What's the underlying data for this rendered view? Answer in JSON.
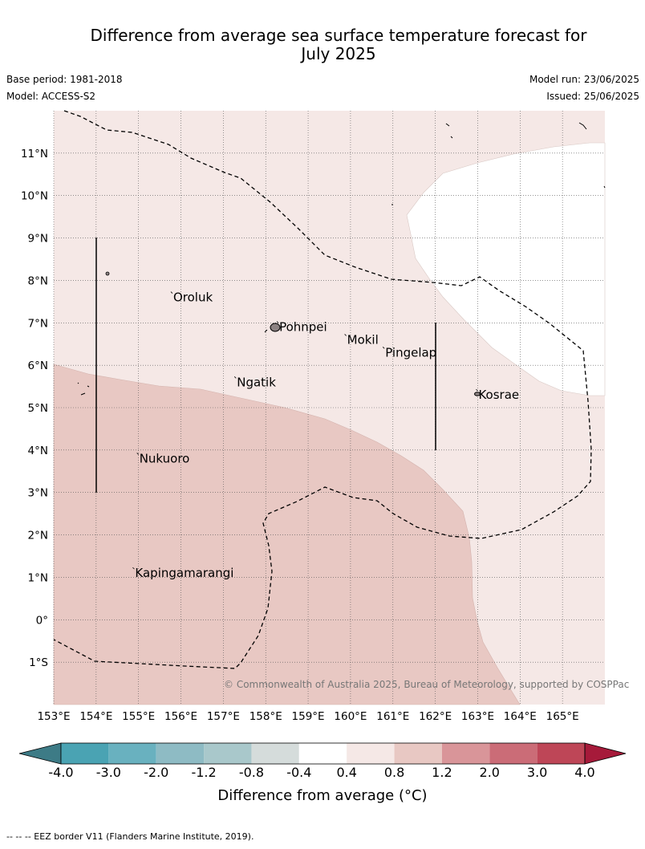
{
  "title_line1": "Difference from average sea surface temperature forecast for",
  "title_line2": "July 2025",
  "base_period": "Base period: 1981-2018",
  "model": "Model: ACCESS-S2",
  "model_run": "Model run: 23/06/2025",
  "issued": "Issued: 25/06/2025",
  "copyright": "© Commonwealth of Australia 2025, Bureau of Meteorology, supported by COSPPac",
  "footnote": "--  --  -- EEZ border V11 (Flanders Marine Institute, 2019).",
  "colors": {
    "anomaly_0.4_0.8": "#f5e8e6",
    "anomaly_0.8_1.2": "#e8c8c3",
    "neutral": "#ffffff",
    "eez_line": "#000000"
  },
  "map": {
    "lon_range": [
      153,
      166
    ],
    "lat_range": [
      -2,
      12
    ],
    "lon_ticks": [
      {
        "value": 153,
        "label": "153°E"
      },
      {
        "value": 154,
        "label": "154°E"
      },
      {
        "value": 155,
        "label": "155°E"
      },
      {
        "value": 156,
        "label": "156°E"
      },
      {
        "value": 157,
        "label": "157°E"
      },
      {
        "value": 158,
        "label": "158°E"
      },
      {
        "value": 159,
        "label": "159°E"
      },
      {
        "value": 160,
        "label": "160°E"
      },
      {
        "value": 161,
        "label": "161°E"
      },
      {
        "value": 162,
        "label": "162°E"
      },
      {
        "value": 163,
        "label": "163°E"
      },
      {
        "value": 164,
        "label": "164°E"
      },
      {
        "value": 165,
        "label": "165°E"
      }
    ],
    "lat_ticks": [
      {
        "value": 11,
        "label": "11°N"
      },
      {
        "value": 10,
        "label": "10°N"
      },
      {
        "value": 9,
        "label": "9°N"
      },
      {
        "value": 8,
        "label": "8°N"
      },
      {
        "value": 7,
        "label": "7°N"
      },
      {
        "value": 6,
        "label": "6°N"
      },
      {
        "value": 5,
        "label": "5°N"
      },
      {
        "value": 4,
        "label": "4°N"
      },
      {
        "value": 3,
        "label": "3°N"
      },
      {
        "value": 2,
        "label": "2°N"
      },
      {
        "value": 1,
        "label": "1°N"
      },
      {
        "value": 0,
        "label": "0°"
      },
      {
        "value": -1,
        "label": "1°S"
      }
    ],
    "places": [
      {
        "name": "Oroluk",
        "lon": 155.8,
        "lat": 7.6
      },
      {
        "name": "Pohnpei",
        "lon": 158.3,
        "lat": 6.9
      },
      {
        "name": "Mokil",
        "lon": 159.9,
        "lat": 6.6
      },
      {
        "name": "Pingelap",
        "lon": 160.8,
        "lat": 6.3
      },
      {
        "name": "Ngatik",
        "lon": 157.3,
        "lat": 5.6
      },
      {
        "name": "Kosrae",
        "lon": 163.0,
        "lat": 5.3
      },
      {
        "name": "Nukuoro",
        "lon": 155.0,
        "lat": 3.8
      },
      {
        "name": "Kapingamarangi",
        "lon": 154.9,
        "lat": 1.1
      }
    ]
  },
  "colorbar": {
    "label": "Difference from average (°C)",
    "ticks": [
      "-4.0",
      "-3.0",
      "-2.0",
      "-1.2",
      "-0.8",
      "-0.4",
      "0.4",
      "0.8",
      "1.2",
      "2.0",
      "3.0",
      "4.0"
    ],
    "colors": [
      "#3d7b86",
      "#4aa3b3",
      "#69b1bf",
      "#8ebbc4",
      "#a9c8cb",
      "#d5dcdb",
      "#ffffff",
      "#f5e8e6",
      "#e8c8c3",
      "#d99599",
      "#cb6c77",
      "#be4657",
      "#a61a3a"
    ]
  }
}
